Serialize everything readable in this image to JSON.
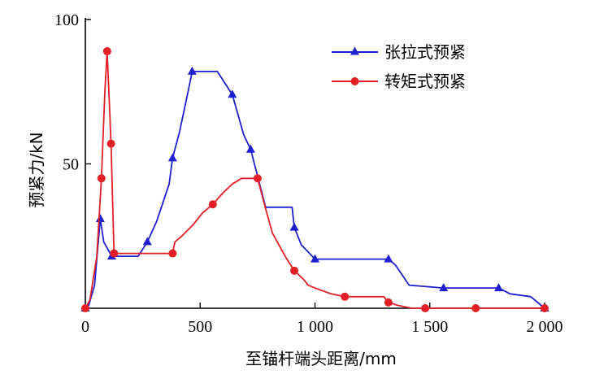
{
  "chart_data": {
    "type": "line",
    "title": "",
    "xlabel": "至锚杆端头距离/mm",
    "ylabel": "预紧力/kN",
    "xlim": [
      0,
      2000
    ],
    "ylim": [
      0,
      100
    ],
    "x_ticks": [
      {
        "value": 0,
        "label": "0"
      },
      {
        "value": 500,
        "label": "500"
      },
      {
        "value": 1000,
        "label": "1 000"
      },
      {
        "value": 1500,
        "label": "1 500"
      },
      {
        "value": 2000,
        "label": "2 000"
      }
    ],
    "y_ticks": [
      {
        "value": 50,
        "label": "50"
      },
      {
        "value": 100,
        "label": "100"
      }
    ],
    "grid": false,
    "legend_position": "top-right",
    "series": [
      {
        "name": "张拉式预紧",
        "color": "#1f1fcf",
        "marker": "triangle",
        "x": [
          0,
          15,
          40,
          65,
          80,
          115,
          160,
          230,
          270,
          310,
          365,
          380,
          410,
          450,
          465,
          490,
          575,
          640,
          690,
          720,
          785,
          880,
          900,
          910,
          940,
          1000,
          1080,
          1160,
          1320,
          1350,
          1410,
          1560,
          1620,
          1800,
          1850,
          1940,
          2000
        ],
        "y": [
          0,
          1,
          8,
          31,
          23,
          18,
          18,
          18,
          23,
          30,
          43,
          52,
          61,
          76,
          82,
          82,
          82,
          74,
          60,
          55,
          35,
          35,
          35,
          28,
          22,
          17,
          17,
          17,
          17,
          15,
          8,
          7,
          7,
          7,
          5,
          4,
          0
        ],
        "marker_indices": [
          0,
          3,
          5,
          8,
          11,
          14,
          17,
          19,
          23,
          25,
          28,
          31,
          33,
          36
        ]
      },
      {
        "name": "转矩式预紧",
        "color": "#e21f26",
        "marker": "circle",
        "x": [
          0,
          20,
          50,
          70,
          85,
          95,
          105,
          112,
          125,
          200,
          270,
          380,
          390,
          420,
          470,
          510,
          555,
          600,
          640,
          680,
          750,
          790,
          815,
          870,
          910,
          950,
          970,
          1000,
          1070,
          1130,
          1220,
          1300,
          1320,
          1360,
          1420,
          1480,
          1620,
          1700,
          1750,
          1850,
          2000
        ],
        "y": [
          0,
          3,
          18,
          45,
          75,
          89,
          70,
          57,
          19,
          19,
          19,
          19,
          23,
          25,
          29,
          33,
          36,
          40,
          43,
          45,
          45,
          33,
          26,
          18,
          13,
          10,
          8,
          7,
          5,
          4,
          4,
          4,
          2,
          1,
          0,
          0,
          0,
          0,
          0,
          0,
          0
        ],
        "marker_indices": [
          0,
          3,
          5,
          7,
          8,
          11,
          16,
          20,
          24,
          29,
          32,
          35,
          37,
          40
        ]
      }
    ]
  }
}
